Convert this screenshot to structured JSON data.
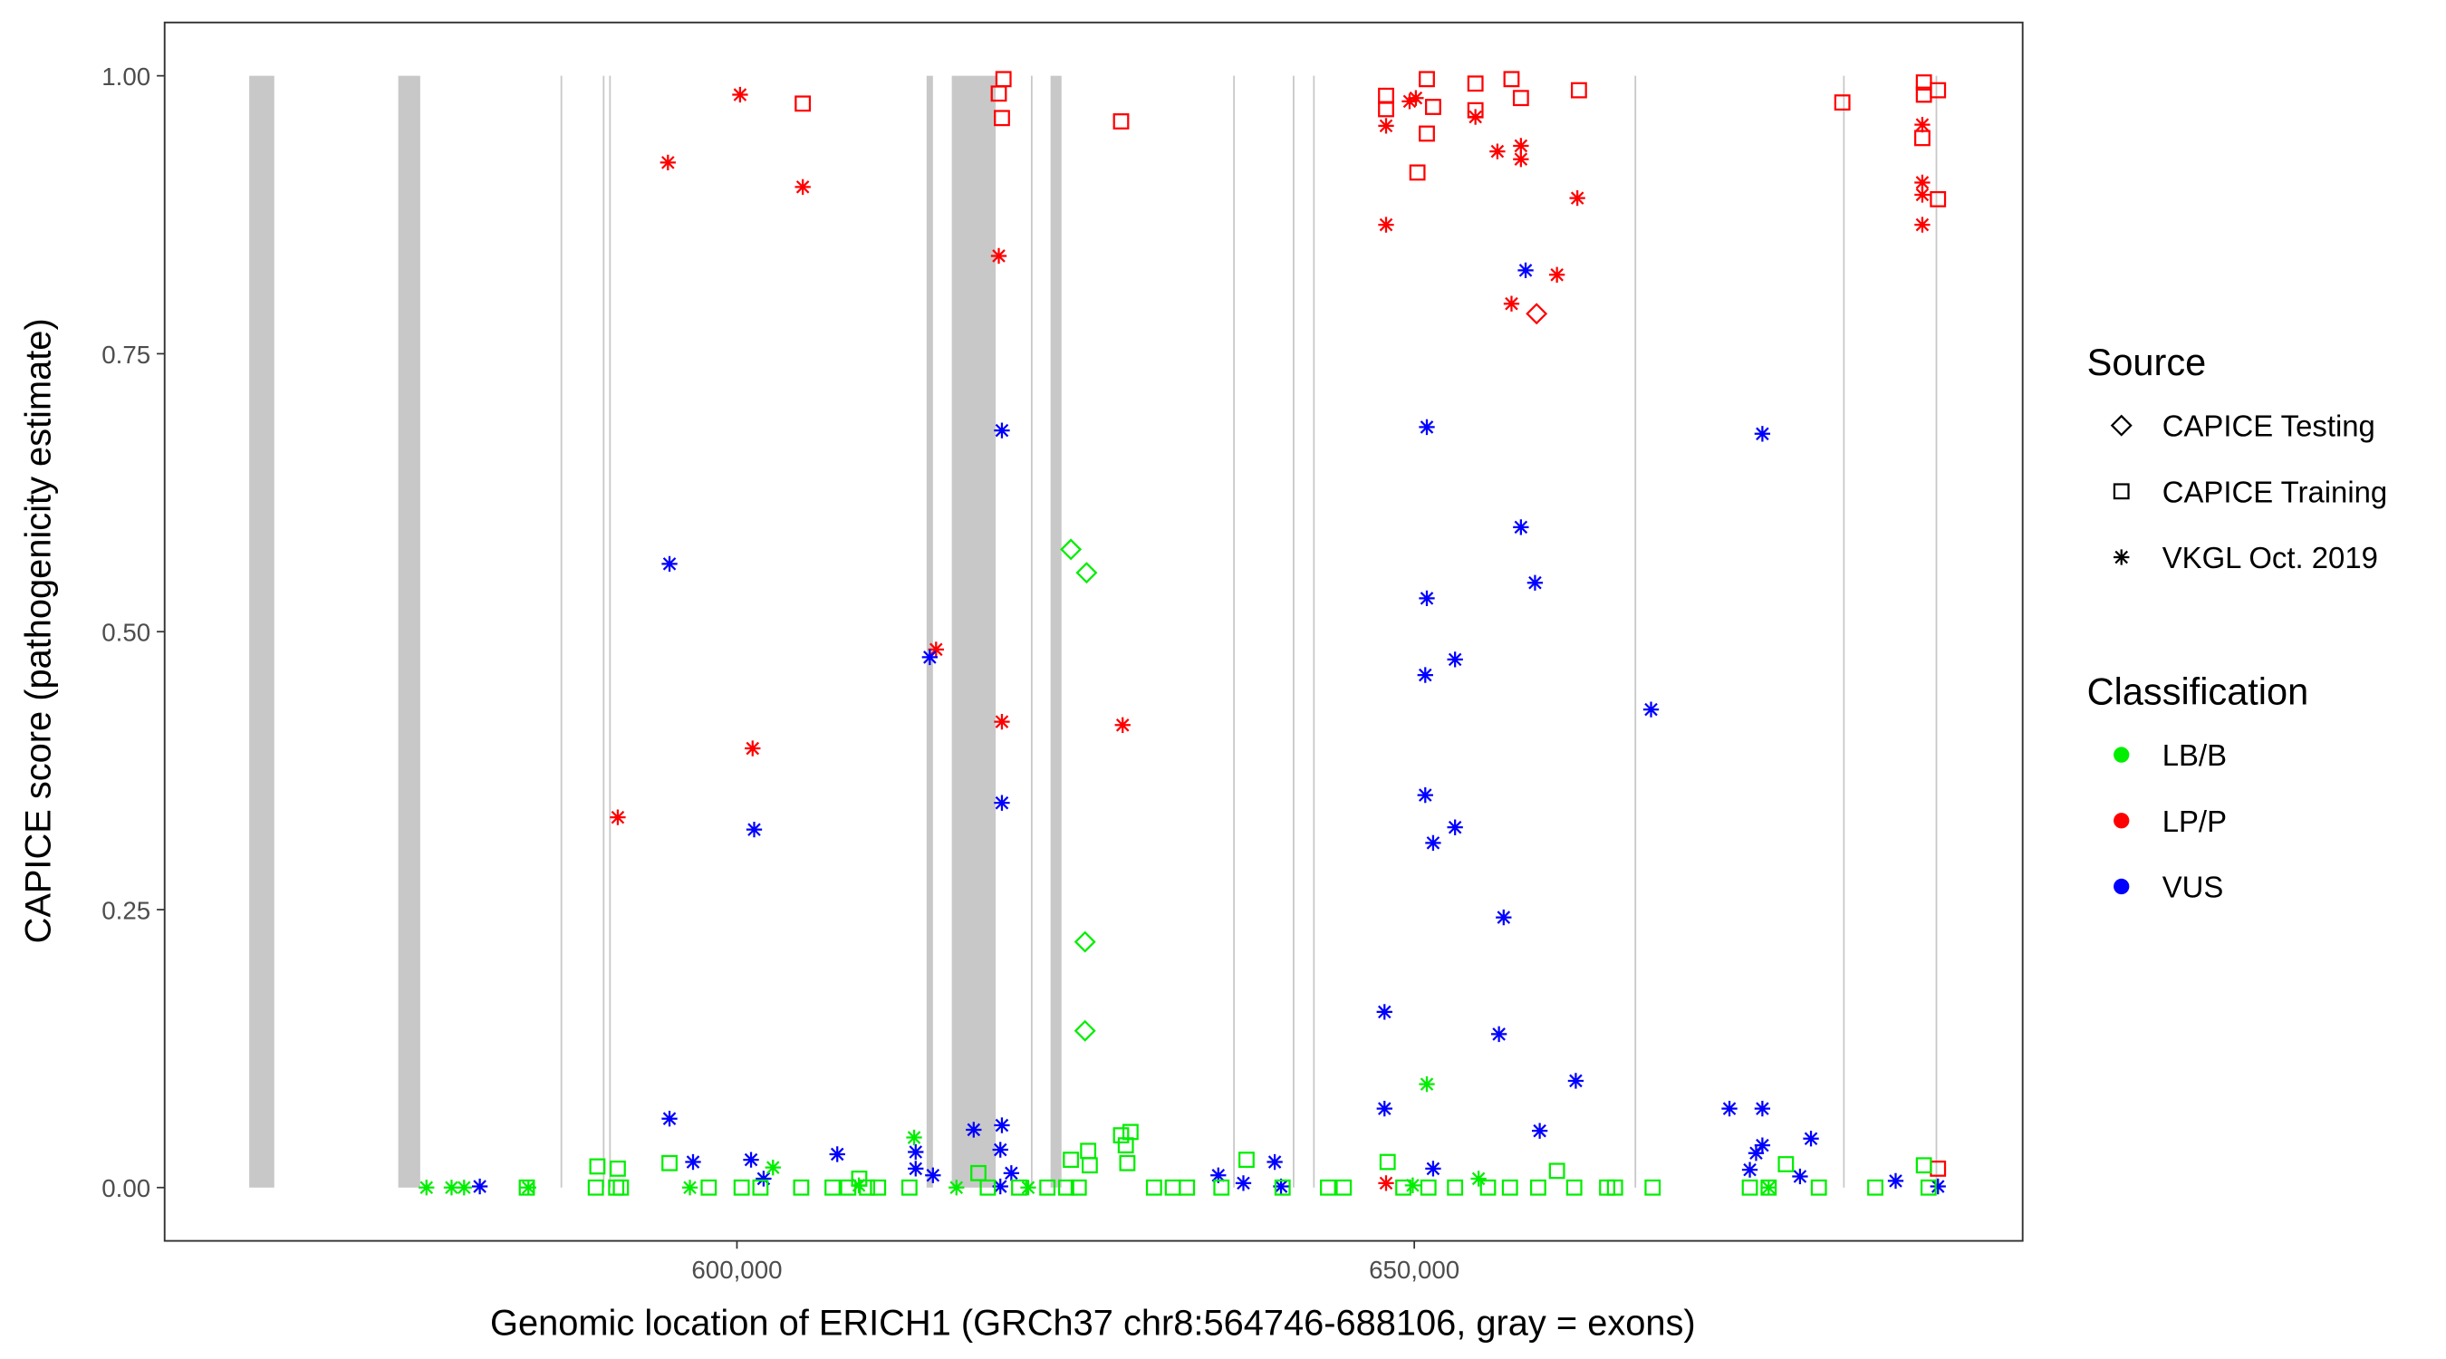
{
  "chart_data": {
    "type": "scatter",
    "xlabel": "Genomic location of ERICH1 (GRCh37 chr8:564746-688106, gray = exons)",
    "ylabel": "CAPICE score (pathogenicity estimate)",
    "xlim": [
      558000,
      693500
    ],
    "ylim": [
      -0.045,
      1.045
    ],
    "grid": false,
    "x_ticks": [
      {
        "value": 600000,
        "label": "600,000"
      },
      {
        "value": 650000,
        "label": "650,000"
      }
    ],
    "y_ticks": [
      {
        "value": 0,
        "label": "0.00"
      },
      {
        "value": 0.25,
        "label": "0.25"
      },
      {
        "value": 0.5,
        "label": "0.50"
      },
      {
        "value": 0.75,
        "label": "0.75"
      },
      {
        "value": 1,
        "label": "1.00"
      }
    ],
    "exons": [
      [
        564000,
        565850
      ],
      [
        575000,
        576620
      ],
      [
        586980,
        587100
      ],
      [
        590100,
        590220
      ],
      [
        590570,
        590690
      ],
      [
        614000,
        614470
      ],
      [
        615860,
        619100
      ],
      [
        621700,
        621820
      ],
      [
        623150,
        623960
      ],
      [
        636630,
        636750
      ],
      [
        641030,
        641150
      ],
      [
        642530,
        642650
      ],
      [
        666260,
        666380
      ],
      [
        681650,
        681770
      ],
      [
        688480,
        688600
      ]
    ],
    "legend": {
      "position": "right",
      "source_title": "Source",
      "source_items": [
        {
          "key": "diamond",
          "label": "CAPICE Testing"
        },
        {
          "key": "square",
          "label": "CAPICE Training"
        },
        {
          "key": "asterisk",
          "label": "VKGL Oct. 2019"
        }
      ],
      "class_title": "Classification",
      "class_items": [
        {
          "key": "LB/B",
          "label": "LB/B",
          "color": "#00ee00"
        },
        {
          "key": "LP/P",
          "label": "LP/P",
          "color": "#ff0000"
        },
        {
          "key": "VUS",
          "label": "VUS",
          "color": "#0000ff"
        }
      ]
    },
    "points": [
      [
        594907,
        0.922,
        "asterisk",
        "LP/P"
      ],
      [
        600231,
        0.983,
        "asterisk",
        "LP/P"
      ],
      [
        604861,
        0.9,
        "asterisk",
        "LP/P"
      ],
      [
        591204,
        0.333,
        "asterisk",
        "LP/P"
      ],
      [
        601157,
        0.395,
        "asterisk",
        "LP/P"
      ],
      [
        614700,
        0.484,
        "asterisk",
        "LP/P"
      ],
      [
        619329,
        0.838,
        "asterisk",
        "LP/P"
      ],
      [
        619560,
        0.419,
        "asterisk",
        "LP/P"
      ],
      [
        628472,
        0.416,
        "asterisk",
        "LP/P"
      ],
      [
        647917,
        0.866,
        "asterisk",
        "LP/P"
      ],
      [
        647917,
        0.955,
        "asterisk",
        "LP/P"
      ],
      [
        650116,
        0.98,
        "asterisk",
        "LP/P"
      ],
      [
        649653,
        0.977,
        "asterisk",
        "LP/P"
      ],
      [
        654514,
        0.963,
        "asterisk",
        "LP/P"
      ],
      [
        656134,
        0.932,
        "asterisk",
        "LP/P"
      ],
      [
        657870,
        0.937,
        "asterisk",
        "LP/P"
      ],
      [
        657870,
        0.925,
        "asterisk",
        "LP/P"
      ],
      [
        657176,
        0.795,
        "asterisk",
        "LP/P"
      ],
      [
        660532,
        0.821,
        "asterisk",
        "LP/P"
      ],
      [
        662037,
        0.89,
        "asterisk",
        "LP/P"
      ],
      [
        687500,
        0.956,
        "asterisk",
        "LP/P"
      ],
      [
        687500,
        0.904,
        "asterisk",
        "LP/P"
      ],
      [
        687500,
        0.893,
        "asterisk",
        "LP/P"
      ],
      [
        687500,
        0.866,
        "asterisk",
        "LP/P"
      ],
      [
        647917,
        0.004,
        "asterisk",
        "LP/P"
      ],
      [
        604861,
        0.975,
        "square",
        "LP/P"
      ],
      [
        619676,
        0.997,
        "square",
        "LP/P"
      ],
      [
        619329,
        0.984,
        "square",
        "LP/P"
      ],
      [
        619560,
        0.962,
        "square",
        "LP/P"
      ],
      [
        628356,
        0.959,
        "square",
        "LP/P"
      ],
      [
        647917,
        0.982,
        "square",
        "LP/P"
      ],
      [
        647917,
        0.97,
        "square",
        "LP/P"
      ],
      [
        650231,
        0.913,
        "square",
        "LP/P"
      ],
      [
        650926,
        0.948,
        "square",
        "LP/P"
      ],
      [
        650926,
        0.997,
        "square",
        "LP/P"
      ],
      [
        651389,
        0.972,
        "square",
        "LP/P"
      ],
      [
        654514,
        0.993,
        "square",
        "LP/P"
      ],
      [
        654514,
        0.969,
        "square",
        "LP/P"
      ],
      [
        657176,
        0.997,
        "square",
        "LP/P"
      ],
      [
        657870,
        0.98,
        "square",
        "LP/P"
      ],
      [
        662153,
        0.987,
        "square",
        "LP/P"
      ],
      [
        681597,
        0.976,
        "square",
        "LP/P"
      ],
      [
        687616,
        0.994,
        "square",
        "LP/P"
      ],
      [
        687616,
        0.983,
        "square",
        "LP/P"
      ],
      [
        687500,
        0.944,
        "square",
        "LP/P"
      ],
      [
        688657,
        0.987,
        "square",
        "LP/P"
      ],
      [
        688657,
        0.889,
        "square",
        "LP/P"
      ],
      [
        688657,
        0.017,
        "square",
        "LP/P"
      ],
      [
        659028,
        0.786,
        "diamond",
        "LP/P"
      ],
      [
        595023,
        0.561,
        "asterisk",
        "VUS"
      ],
      [
        595023,
        0.062,
        "asterisk",
        "VUS"
      ],
      [
        596759,
        0.023,
        "asterisk",
        "VUS"
      ],
      [
        601273,
        0.322,
        "asterisk",
        "VUS"
      ],
      [
        601042,
        0.025,
        "asterisk",
        "VUS"
      ],
      [
        601968,
        0.008,
        "asterisk",
        "VUS"
      ],
      [
        607407,
        0.03,
        "asterisk",
        "VUS"
      ],
      [
        613194,
        0.032,
        "asterisk",
        "VUS"
      ],
      [
        613194,
        0.017,
        "asterisk",
        "VUS"
      ],
      [
        614236,
        0.477,
        "asterisk",
        "VUS"
      ],
      [
        614468,
        0.011,
        "asterisk",
        "VUS"
      ],
      [
        617477,
        0.052,
        "asterisk",
        "VUS"
      ],
      [
        619560,
        0.681,
        "asterisk",
        "VUS"
      ],
      [
        619560,
        0.346,
        "asterisk",
        "VUS"
      ],
      [
        619560,
        0.056,
        "asterisk",
        "VUS"
      ],
      [
        619444,
        0.034,
        "asterisk",
        "VUS"
      ],
      [
        620255,
        0.013,
        "asterisk",
        "VUS"
      ],
      [
        619444,
        0.001,
        "asterisk",
        "VUS"
      ],
      [
        635532,
        0.011,
        "asterisk",
        "VUS"
      ],
      [
        637384,
        0.004,
        "asterisk",
        "VUS"
      ],
      [
        639699,
        0.023,
        "asterisk",
        "VUS"
      ],
      [
        640162,
        0.001,
        "asterisk",
        "VUS"
      ],
      [
        647801,
        0.158,
        "asterisk",
        "VUS"
      ],
      [
        647801,
        0.071,
        "asterisk",
        "VUS"
      ],
      [
        650926,
        0.684,
        "asterisk",
        "VUS"
      ],
      [
        650926,
        0.53,
        "asterisk",
        "VUS"
      ],
      [
        650810,
        0.461,
        "asterisk",
        "VUS"
      ],
      [
        650810,
        0.353,
        "asterisk",
        "VUS"
      ],
      [
        651389,
        0.31,
        "asterisk",
        "VUS"
      ],
      [
        653009,
        0.475,
        "asterisk",
        "VUS"
      ],
      [
        653009,
        0.324,
        "asterisk",
        "VUS"
      ],
      [
        651389,
        0.017,
        "asterisk",
        "VUS"
      ],
      [
        658218,
        0.825,
        "asterisk",
        "VUS"
      ],
      [
        657870,
        0.594,
        "asterisk",
        "VUS"
      ],
      [
        658912,
        0.544,
        "asterisk",
        "VUS"
      ],
      [
        656597,
        0.243,
        "asterisk",
        "VUS"
      ],
      [
        656250,
        0.138,
        "asterisk",
        "VUS"
      ],
      [
        659259,
        0.051,
        "asterisk",
        "VUS"
      ],
      [
        661921,
        0.096,
        "asterisk",
        "VUS"
      ],
      [
        667477,
        0.43,
        "asterisk",
        "VUS"
      ],
      [
        675694,
        0.678,
        "asterisk",
        "VUS"
      ],
      [
        673264,
        0.071,
        "asterisk",
        "VUS"
      ],
      [
        675694,
        0.071,
        "asterisk",
        "VUS"
      ],
      [
        675694,
        0.038,
        "asterisk",
        "VUS"
      ],
      [
        675231,
        0.031,
        "asterisk",
        "VUS"
      ],
      [
        674768,
        0.016,
        "asterisk",
        "VUS"
      ],
      [
        679282,
        0.044,
        "asterisk",
        "VUS"
      ],
      [
        678472,
        0.01,
        "asterisk",
        "VUS"
      ],
      [
        685532,
        0.006,
        "asterisk",
        "VUS"
      ],
      [
        688657,
        0.001,
        "asterisk",
        "VUS"
      ],
      [
        581019,
        0.001,
        "asterisk",
        "VUS"
      ],
      [
        624653,
        0.574,
        "diamond",
        "LB/B"
      ],
      [
        625810,
        0.553,
        "diamond",
        "LB/B"
      ],
      [
        625694,
        0.221,
        "diamond",
        "LB/B"
      ],
      [
        625694,
        0.141,
        "diamond",
        "LB/B"
      ],
      [
        577083,
        0,
        "asterisk",
        "LB/B"
      ],
      [
        578935,
        0,
        "asterisk",
        "LB/B"
      ],
      [
        579861,
        0,
        "asterisk",
        "LB/B"
      ],
      [
        584606,
        0,
        "asterisk",
        "LB/B"
      ],
      [
        596528,
        0,
        "asterisk",
        "LB/B"
      ],
      [
        602662,
        0.018,
        "asterisk",
        "LB/B"
      ],
      [
        613079,
        0.045,
        "asterisk",
        "LB/B"
      ],
      [
        616204,
        0,
        "asterisk",
        "LB/B"
      ],
      [
        650926,
        0.093,
        "asterisk",
        "LB/B"
      ],
      [
        654745,
        0.008,
        "asterisk",
        "LB/B"
      ],
      [
        649884,
        0.002,
        "asterisk",
        "LB/B"
      ],
      [
        676157,
        0,
        "asterisk",
        "LB/B"
      ],
      [
        609000,
        0.002,
        "asterisk",
        "LB/B"
      ],
      [
        621500,
        0,
        "asterisk",
        "LB/B"
      ],
      [
        584490,
        0,
        "square",
        "LB/B"
      ],
      [
        589583,
        0,
        "square",
        "LB/B"
      ],
      [
        591088,
        0,
        "square",
        "LB/B"
      ],
      [
        591435,
        0,
        "square",
        "LB/B"
      ],
      [
        589699,
        0.019,
        "square",
        "LB/B"
      ],
      [
        591204,
        0.017,
        "square",
        "LB/B"
      ],
      [
        595023,
        0.022,
        "square",
        "LB/B"
      ],
      [
        597917,
        0,
        "square",
        "LB/B"
      ],
      [
        600347,
        0,
        "square",
        "LB/B"
      ],
      [
        601736,
        0,
        "square",
        "LB/B"
      ],
      [
        604745,
        0,
        "square",
        "LB/B"
      ],
      [
        607060,
        0,
        "square",
        "LB/B"
      ],
      [
        608218,
        0,
        "square",
        "LB/B"
      ],
      [
        609028,
        0.008,
        "square",
        "LB/B"
      ],
      [
        609606,
        0,
        "square",
        "LB/B"
      ],
      [
        610417,
        0,
        "square",
        "LB/B"
      ],
      [
        612731,
        0,
        "square",
        "LB/B"
      ],
      [
        617824,
        0.013,
        "square",
        "LB/B"
      ],
      [
        618518,
        0,
        "square",
        "LB/B"
      ],
      [
        620833,
        0,
        "square",
        "LB/B"
      ],
      [
        622917,
        0,
        "square",
        "LB/B"
      ],
      [
        624306,
        0,
        "square",
        "LB/B"
      ],
      [
        624653,
        0.025,
        "square",
        "LB/B"
      ],
      [
        625231,
        0,
        "square",
        "LB/B"
      ],
      [
        625926,
        0.033,
        "square",
        "LB/B"
      ],
      [
        626042,
        0.02,
        "square",
        "LB/B"
      ],
      [
        628356,
        0.047,
        "square",
        "LB/B"
      ],
      [
        629051,
        0.05,
        "square",
        "LB/B"
      ],
      [
        628704,
        0.038,
        "square",
        "LB/B"
      ],
      [
        628819,
        0.022,
        "square",
        "LB/B"
      ],
      [
        630787,
        0,
        "square",
        "LB/B"
      ],
      [
        632176,
        0,
        "square",
        "LB/B"
      ],
      [
        633218,
        0,
        "square",
        "LB/B"
      ],
      [
        635764,
        0,
        "square",
        "LB/B"
      ],
      [
        637616,
        0.025,
        "square",
        "LB/B"
      ],
      [
        640278,
        0,
        "square",
        "LB/B"
      ],
      [
        643634,
        0,
        "square",
        "LB/B"
      ],
      [
        644792,
        0,
        "square",
        "LB/B"
      ],
      [
        648032,
        0.023,
        "square",
        "LB/B"
      ],
      [
        649190,
        0,
        "square",
        "LB/B"
      ],
      [
        651042,
        0,
        "square",
        "LB/B"
      ],
      [
        653009,
        0,
        "square",
        "LB/B"
      ],
      [
        655440,
        0,
        "square",
        "LB/B"
      ],
      [
        657060,
        0,
        "square",
        "LB/B"
      ],
      [
        659144,
        0,
        "square",
        "LB/B"
      ],
      [
        660532,
        0.015,
        "square",
        "LB/B"
      ],
      [
        661806,
        0,
        "square",
        "LB/B"
      ],
      [
        664236,
        0,
        "square",
        "LB/B"
      ],
      [
        664815,
        0,
        "square",
        "LB/B"
      ],
      [
        667593,
        0,
        "square",
        "LB/B"
      ],
      [
        674768,
        0,
        "square",
        "LB/B"
      ],
      [
        676157,
        0,
        "square",
        "LB/B"
      ],
      [
        677431,
        0.021,
        "square",
        "LB/B"
      ],
      [
        679861,
        0,
        "square",
        "LB/B"
      ],
      [
        684028,
        0,
        "square",
        "LB/B"
      ],
      [
        687616,
        0.02,
        "square",
        "LB/B"
      ],
      [
        687963,
        0,
        "square",
        "LB/B"
      ]
    ]
  }
}
